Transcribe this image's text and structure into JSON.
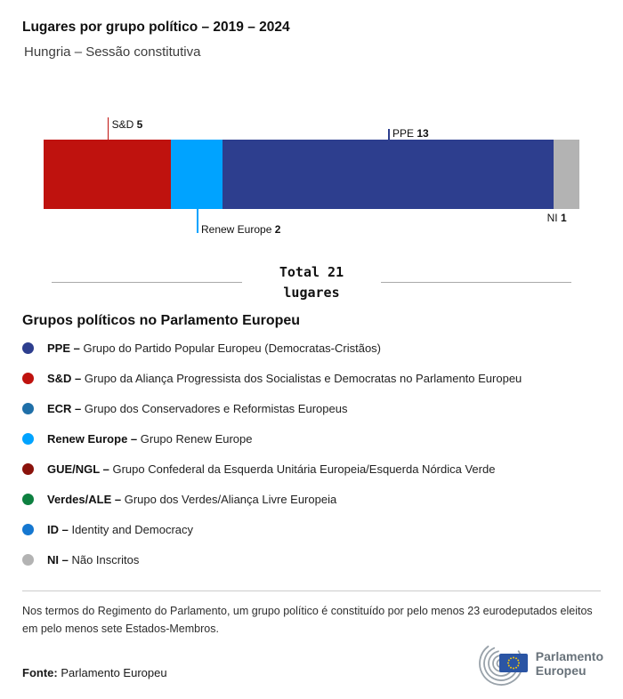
{
  "header": {
    "title": "Lugares por grupo político – 2019 – 2024",
    "subtitle": "Hungria – Sessão constitutiva"
  },
  "chart_data": {
    "type": "bar",
    "stacked": true,
    "title": "Lugares por grupo político – 2019 – 2024",
    "total": 21,
    "categories": [
      "S&D",
      "Renew Europe",
      "PPE",
      "NI"
    ],
    "values": [
      5,
      2,
      13,
      1
    ],
    "segments": [
      {
        "name": "S&D",
        "seats": 5,
        "color": "#bf120e",
        "side": "top",
        "tick": 25
      },
      {
        "name": "Renew Europe",
        "seats": 2,
        "color": "#00a3ff",
        "side": "bottom",
        "tick": 27
      },
      {
        "name": "PPE",
        "seats": 13,
        "color": "#2d3e8e",
        "side": "top",
        "tick": 12
      },
      {
        "name": "NI",
        "seats": 1,
        "color": "#b3b3b3",
        "side": "bottom",
        "tick": 0
      }
    ]
  },
  "total": {
    "line1": "Total 21",
    "line2": "lugares"
  },
  "legend": {
    "heading": "Grupos políticos no Parlamento Europeu",
    "items": [
      {
        "abbr": "PPE –",
        "desc": "Grupo do Partido Popular Europeu (Democratas-Cristãos)",
        "color": "#2d3e8e"
      },
      {
        "abbr": "S&D –",
        "desc": "Grupo da Aliança Progressista dos Socialistas e Democratas no Parlamento Europeu",
        "color": "#bf120e"
      },
      {
        "abbr": "ECR –",
        "desc": "Grupo dos Conservadores e Reformistas Europeus",
        "color": "#1f6fa8"
      },
      {
        "abbr": "Renew Europe –",
        "desc": "Grupo Renew Europe",
        "color": "#00a3ff"
      },
      {
        "abbr": "GUE/NGL –",
        "desc": "Grupo Confederal da Esquerda Unitária Europeia/Esquerda Nórdica Verde",
        "color": "#8a120b"
      },
      {
        "abbr": "Verdes/ALE –",
        "desc": "Grupo dos Verdes/Aliança Livre Europeia",
        "color": "#0d8040"
      },
      {
        "abbr": "ID –",
        "desc": "Identity and Democracy",
        "color": "#1577d0"
      },
      {
        "abbr": "NI –",
        "desc": "Não Inscritos",
        "color": "#b3b3b3"
      }
    ]
  },
  "footnote": "Nos termos do Regimento do Parlamento, um grupo político é constituído por pelo menos 23 eurodeputados eleitos em pelo menos sete Estados-Membros.",
  "footer": {
    "source_label": "Fonte:",
    "source_value": "Parlamento Europeu",
    "logo_line1": "Parlamento",
    "logo_line2": "Europeu"
  }
}
